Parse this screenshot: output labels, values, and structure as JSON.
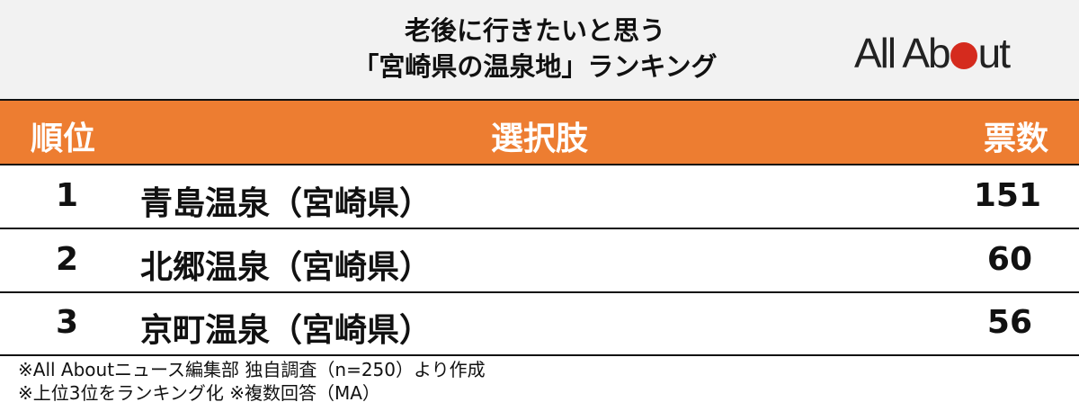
{
  "header": {
    "title_line1": "老後に行きたいと思う",
    "title_line2": "「宮崎県の温泉地」ランキング",
    "logo": "All About"
  },
  "colors": {
    "header_bg": "#f2f2f2",
    "accent": "#ed7d31",
    "logo_dot": "#d52b1e"
  },
  "chart_data": {
    "type": "table",
    "title": "老後に行きたいと思う「宮崎県の温泉地」ランキング",
    "columns": [
      "順位",
      "選択肢",
      "票数"
    ],
    "rows": [
      {
        "rank": "1",
        "name": "青島温泉（宮崎県）",
        "votes": "151"
      },
      {
        "rank": "2",
        "name": "北郷温泉（宮崎県）",
        "votes": "60"
      },
      {
        "rank": "3",
        "name": "京町温泉（宮崎県）",
        "votes": "56"
      }
    ]
  },
  "notes": [
    "※All Aboutニュース編集部 独自調査（n=250）より作成",
    "※上位3位をランキング化 ※複数回答（MA）"
  ]
}
